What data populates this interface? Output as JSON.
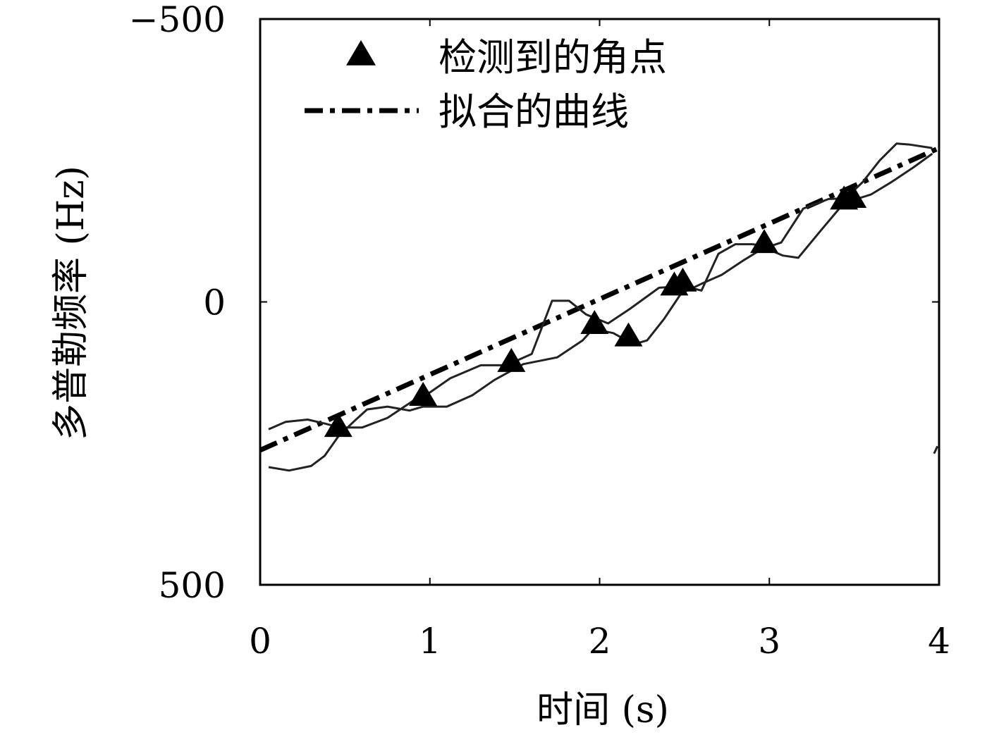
{
  "chart_data": {
    "type": "line",
    "xlabel": "时间 (s)",
    "ylabel": "多普勒频率 (Hz)",
    "xlim": [
      0,
      4
    ],
    "ylim": [
      500,
      -500
    ],
    "y_axis_inverted": true,
    "grid": false,
    "legend_position": "top-left",
    "x_ticks": [
      "0",
      "1",
      "2",
      "3",
      "4"
    ],
    "y_ticks": [
      "−500",
      "0",
      "500"
    ],
    "legend": [
      {
        "label": "检测到的角点",
        "marker": "filled-triangle"
      },
      {
        "label": "拟合的曲线",
        "line_style": "dash-dot"
      }
    ],
    "series": [
      {
        "name": "检测到的角点",
        "kind": "markers",
        "points": [
          [
            0.46,
            220
          ],
          [
            0.96,
            165
          ],
          [
            1.48,
            105
          ],
          [
            1.97,
            38
          ],
          [
            2.17,
            60
          ],
          [
            2.44,
            -30
          ],
          [
            2.49,
            -37
          ],
          [
            2.97,
            -105
          ],
          [
            3.44,
            -182
          ],
          [
            3.49,
            -185
          ]
        ]
      },
      {
        "name": "拟合的曲线",
        "kind": "dashdot-line",
        "points": [
          [
            0.0,
            262
          ],
          [
            4.0,
            -272
          ]
        ]
      },
      {
        "name": "",
        "kind": "thin-curve",
        "points": [
          [
            0.05,
            225
          ],
          [
            0.15,
            212
          ],
          [
            0.28,
            208
          ],
          [
            0.38,
            215
          ],
          [
            0.47,
            222
          ],
          [
            0.6,
            222
          ],
          [
            0.75,
            205
          ],
          [
            0.9,
            175
          ],
          [
            1.0,
            160
          ],
          [
            1.12,
            135
          ],
          [
            1.3,
            112
          ],
          [
            1.45,
            112
          ],
          [
            1.6,
            92
          ],
          [
            1.72,
            -2
          ],
          [
            1.82,
            -2
          ],
          [
            1.92,
            22
          ],
          [
            2.05,
            38
          ],
          [
            2.18,
            12
          ],
          [
            2.35,
            -25
          ],
          [
            2.5,
            -28
          ],
          [
            2.6,
            -20
          ],
          [
            2.7,
            -85
          ],
          [
            2.8,
            -102
          ],
          [
            2.9,
            -102
          ],
          [
            3.0,
            -98
          ],
          [
            3.07,
            -105
          ],
          [
            3.2,
            -165
          ],
          [
            3.35,
            -182
          ],
          [
            3.45,
            -183
          ],
          [
            3.55,
            -212
          ],
          [
            3.65,
            -250
          ],
          [
            3.75,
            -280
          ],
          [
            3.83,
            -278
          ],
          [
            3.96,
            -272
          ]
        ]
      },
      {
        "name": "",
        "kind": "thin-curve",
        "points": [
          [
            0.05,
            292
          ],
          [
            0.17,
            298
          ],
          [
            0.3,
            290
          ],
          [
            0.38,
            272
          ],
          [
            0.46,
            238
          ],
          [
            0.55,
            212
          ],
          [
            0.63,
            190
          ],
          [
            0.75,
            185
          ],
          [
            0.88,
            192
          ],
          [
            0.96,
            185
          ],
          [
            1.1,
            185
          ],
          [
            1.25,
            165
          ],
          [
            1.38,
            138
          ],
          [
            1.55,
            110
          ],
          [
            1.75,
            98
          ],
          [
            1.9,
            68
          ],
          [
            1.96,
            48
          ],
          [
            2.08,
            55
          ],
          [
            2.2,
            75
          ],
          [
            2.28,
            68
          ],
          [
            2.38,
            30
          ],
          [
            2.48,
            -15
          ],
          [
            2.6,
            -32
          ],
          [
            2.72,
            -48
          ],
          [
            2.84,
            -72
          ],
          [
            2.97,
            -96
          ],
          [
            3.08,
            -82
          ],
          [
            3.17,
            -78
          ],
          [
            3.3,
            -125
          ],
          [
            3.44,
            -175
          ],
          [
            3.6,
            -190
          ],
          [
            3.72,
            -212
          ],
          [
            3.85,
            -238
          ],
          [
            3.96,
            -262
          ]
        ]
      },
      {
        "name": "",
        "kind": "thin-curve",
        "points": [
          [
            3.97,
            268
          ],
          [
            3.98,
            262
          ],
          [
            3.99,
            255
          ]
        ]
      }
    ]
  }
}
